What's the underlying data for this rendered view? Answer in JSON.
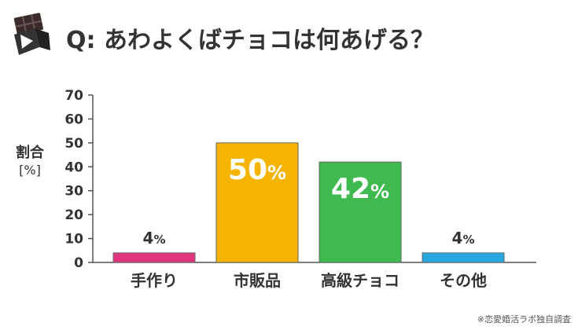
{
  "header": {
    "title": "Q: あわよくばチョコは何あげる？",
    "logo_icon": "chocolate-bar-icon"
  },
  "footnote": "※恋愛婚活ラボ独自調査",
  "chart_data": {
    "type": "bar",
    "categories": [
      "手作り",
      "市販品",
      "高級チョコ",
      "その他"
    ],
    "values": [
      4,
      50,
      42,
      4
    ],
    "value_labels": [
      "4%",
      "50%",
      "42%",
      "4%"
    ],
    "colors": [
      "#e2357f",
      "#f4b400",
      "#3fba4f",
      "#29a8e0"
    ],
    "ylabel_main": "割合",
    "ylabel_unit": "[%]",
    "ylim": [
      0,
      70
    ],
    "yticks": [
      0,
      10,
      20,
      30,
      40,
      50,
      60,
      70
    ],
    "grid": false,
    "legend": "none"
  }
}
